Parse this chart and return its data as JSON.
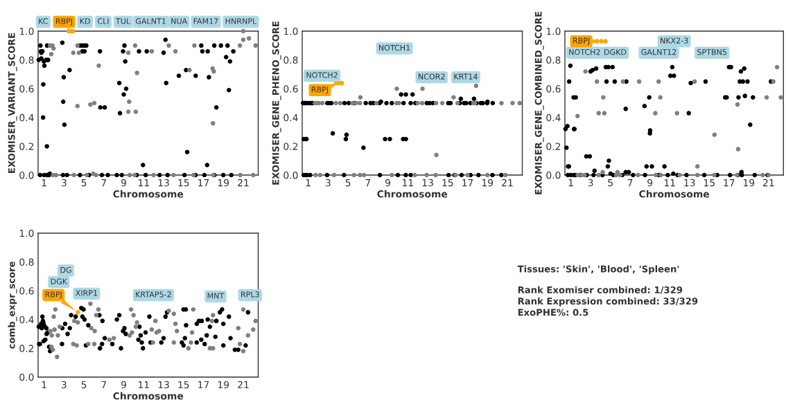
{
  "chart_data": [
    {
      "type": "scatter",
      "xlabel": "Chromosome",
      "ylabel": "EXOMISER_VARIANT_SCORE",
      "xlim": [
        0.4,
        22.5
      ],
      "ylim": [
        0,
        1
      ],
      "marker": "circle",
      "grid": false,
      "xticks": [
        1,
        3,
        5,
        7,
        9,
        11,
        13,
        15,
        17,
        19,
        21
      ],
      "yticks": [
        {
          "value": 0,
          "label": "0.0"
        },
        {
          "value": 0.2,
          "label": "0.2"
        },
        {
          "value": 0.4,
          "label": "0.4"
        },
        {
          "value": 0.6,
          "label": "0.6"
        },
        {
          "value": 0.8,
          "label": "0.8"
        },
        {
          "value": 1.0,
          "label": "1.0"
        }
      ],
      "series": [
        {
          "color": "#000000",
          "x": [
            0.46,
            0.63,
            0.68,
            0.72,
            0.78,
            0.83,
            0.72,
            0.9,
            0.92,
            0.98,
            1.03,
            1.21,
            1.4,
            1.28,
            1.3,
            1.57,
            2.83,
            2.97,
            2.92,
            3.04,
            3.56,
            4.63,
            4.85,
            5.06,
            5.24,
            4.85,
            5.06,
            6.61,
            6.65,
            7.09,
            8.55,
            9.0,
            9.24,
            8.62,
            8.93,
            9.07,
            9.15,
            10.53,
            10.93,
            11.31,
            13.0,
            13.19,
            13.26,
            14.53,
            15.26,
            15.37,
            16.22,
            16.78,
            16.89,
            17.43,
            17.37,
            17.55,
            18.09,
            18.3,
            18.76,
            19.28,
            19.42,
            19.67,
            19.56,
            20.0,
            0.6,
            1.0,
            1.3,
            1.5,
            2.9,
            3.3,
            4.6,
            5.5,
            6.8,
            7.4,
            8.3,
            8.8,
            10.3,
            11.2,
            12.6,
            13.4,
            15.1,
            16.2,
            17.1,
            18.1,
            19.0,
            19.8
          ],
          "values": [
            0.8,
            0.9,
            0.86,
            0.85,
            0.86,
            0.86,
            0.81,
            0.4,
            0.63,
            0.79,
            0.76,
            0.8,
            0.8,
            0.2,
            0.9,
            0.01,
            0.92,
            0.68,
            0.51,
            0.35,
            0.73,
            0.9,
            0.9,
            0.9,
            0.9,
            0.86,
            0.86,
            0.86,
            0.47,
            0.47,
            0.64,
            0.56,
            0.6,
            0.43,
            0.86,
            0.9,
            0.79,
            0.86,
            0.07,
            0.86,
            0.85,
            0.94,
            0.64,
            0.69,
            0.73,
            0.16,
            0.69,
            0.9,
            0.86,
            0.86,
            0.07,
            0.68,
            0.9,
            0.47,
            0.9,
            0.82,
            0.9,
            0.79,
            0.59,
            0.86,
            0,
            0,
            0,
            0,
            0,
            0,
            0,
            0,
            0,
            0,
            0,
            0,
            0,
            0,
            0,
            0,
            0,
            0,
            0,
            0,
            0,
            0
          ]
        },
        {
          "color": "#808080",
          "x": [
            1.6,
            1.83,
            1.95,
            1.72,
            3.93,
            4.35,
            4.5,
            4.35,
            5.65,
            6.04,
            6.49,
            9.46,
            9.54,
            9.46,
            10.14,
            10.21,
            10.33,
            11.81,
            13.52,
            14.19,
            15.6,
            16.09,
            17.92,
            18.04,
            17.96,
            20.66,
            21.0,
            21.57,
            22.24,
            21.0,
            5.93,
            1.9,
            2.2,
            4.0,
            5.3,
            6.2,
            9.6,
            10.1,
            12.0,
            14.0,
            16.0,
            18.0,
            20.7,
            22.0
          ],
          "values": [
            0.9,
            0.9,
            0.88,
            0.84,
            0.85,
            0.9,
            0.85,
            0.48,
            0.49,
            0.5,
            0.76,
            0.85,
            0.51,
            0.44,
            0.9,
            0.44,
            0.71,
            0.86,
            0.9,
            0.86,
            0.73,
            0.9,
            0.74,
            0.72,
            0.36,
            0.9,
            0.94,
            0.95,
            0.9,
            1.0,
            0.01,
            0,
            0,
            0,
            0,
            0,
            0,
            0,
            0,
            0,
            0,
            0,
            0,
            0
          ]
        },
        {
          "name": "RBPJ",
          "color": "#ffa500",
          "x": [
            3.47,
            3.67,
            3.89
          ],
          "values": [
            1.0,
            1.0,
            1.0
          ]
        }
      ],
      "annotations": [
        "KC",
        "KD",
        "CLI",
        "TUL",
        "GALNT1",
        "NUA",
        "FAM17",
        "HNRNPL"
      ]
    },
    {
      "type": "scatter",
      "xlabel": "Chromosome",
      "ylabel": "EXOMISER_GENE_PHENO_SCORE",
      "xlim": [
        0.4,
        22.5
      ],
      "ylim": [
        0,
        1
      ],
      "marker": "circle",
      "grid": false,
      "xticks": [
        1,
        3,
        5,
        7,
        9,
        11,
        13,
        15,
        17,
        19,
        21
      ],
      "yticks": [
        {
          "value": 0,
          "label": "0.0"
        },
        {
          "value": 0.2,
          "label": "0.2"
        },
        {
          "value": 0.4,
          "label": "0.4"
        },
        {
          "value": 0.6,
          "label": "0.6"
        },
        {
          "value": 0.8,
          "label": "0.8"
        },
        {
          "value": 1.0,
          "label": "1.0"
        }
      ],
      "series": [
        {
          "color": "#000000",
          "x": [
            0.48,
            0.62,
            0.71,
            0.9,
            1.1,
            1.29,
            1.38,
            1.48,
            2.92,
            3.11,
            3.33,
            4.65,
            5.07,
            5.63,
            6.78,
            7.26,
            7.56,
            8.17,
            8.86,
            9.39,
            10.58,
            11.29,
            11.76,
            12.91,
            13.19,
            13.52,
            15.07,
            15.3,
            16.22,
            16.65,
            16.87,
            17.29,
            17.9,
            18.33,
            18.54,
            18.98,
            19.53,
            0.56,
            0.78,
            0.83,
            3.47,
            4.85,
            4.78,
            6.55,
            8.72,
            9.2,
            10.53,
            10.81,
            10.33,
            10.81,
            11.48,
            8.31,
            16.33,
            17.65,
            19.0,
            0.55,
            0.75,
            0.9,
            1.2,
            2.9,
            4.6,
            8.2,
            10.0,
            10.8,
            11.3,
            15.1,
            15.7,
            16.4,
            17.3,
            18.1,
            19.5,
            20.4
          ],
          "values": [
            0.5,
            0.5,
            0.5,
            0.5,
            0.5,
            0.5,
            0.5,
            0.5,
            0.5,
            0.5,
            0.5,
            0.5,
            0.5,
            0.5,
            0.5,
            0.5,
            0.5,
            0.5,
            0.5,
            0.5,
            0.5,
            0.5,
            0.5,
            0.5,
            0.5,
            0.5,
            0.5,
            0.5,
            0.5,
            0.5,
            0.5,
            0.5,
            0.5,
            0.5,
            0.5,
            0.5,
            0.5,
            0.25,
            0.25,
            0.25,
            0.29,
            0.28,
            0.25,
            0.19,
            0.25,
            0.25,
            0.25,
            0.25,
            0.56,
            0.56,
            0.56,
            0.51,
            0.53,
            0.53,
            0.51,
            0,
            0,
            0,
            0,
            0,
            0,
            0,
            0,
            0,
            0,
            0,
            0,
            0,
            0,
            0,
            0,
            0
          ]
        },
        {
          "color": "#808080",
          "x": [
            1.67,
            1.86,
            2.08,
            2.42,
            3.78,
            4.22,
            5.44,
            5.81,
            6.2,
            7.85,
            9.88,
            10.12,
            12.0,
            12.45,
            13.84,
            14.47,
            16.0,
            17.6,
            17.75,
            20.41,
            21.52,
            22.24,
            6.24,
            15.6,
            17.86,
            13.87,
            12.48,
            9.9,
            1.75,
            2.2,
            3.6,
            5.6,
            6.2,
            6.6,
            9.4,
            11.7,
            12.9,
            13.8,
            15.8,
            17.0,
            19.0,
            20.8
          ],
          "values": [
            0.5,
            0.5,
            0.5,
            0.5,
            0.5,
            0.5,
            0.5,
            0.5,
            0.5,
            0.5,
            0.5,
            0.5,
            0.5,
            0.5,
            0.5,
            0.5,
            0.5,
            0.5,
            0.5,
            0.5,
            0.5,
            0.5,
            0.54,
            0.54,
            0.62,
            0.14,
            0.6,
            0.6,
            0,
            0,
            0,
            0,
            0,
            0,
            0,
            0,
            0,
            0,
            0,
            0,
            0,
            0
          ]
        },
        {
          "name": "RBPJ",
          "color": "#ffa500",
          "x": [
            3.82,
            4.11,
            4.39
          ],
          "values": [
            0.64,
            0.64,
            0.64
          ]
        }
      ],
      "annotations": [
        "NOTCH1",
        "NOTCH2",
        "NCOR2",
        "KRT14"
      ]
    },
    {
      "type": "scatter",
      "xlabel": "Chromosome",
      "ylabel": "EXOMISER_GENE_COMBINED_SCORE",
      "xlim": [
        0.4,
        22.5
      ],
      "ylim": [
        0,
        1
      ],
      "marker": "circle",
      "grid": false,
      "xticks": [
        1,
        3,
        5,
        7,
        9,
        11,
        13,
        15,
        17,
        19,
        21
      ],
      "yticks": [
        {
          "value": 0,
          "label": "0.0"
        },
        {
          "value": 0.2,
          "label": "0.2"
        },
        {
          "value": 0.4,
          "label": "0.4"
        },
        {
          "value": 0.6,
          "label": "0.6"
        },
        {
          "value": 0.8,
          "label": "0.8"
        },
        {
          "value": 1.0,
          "label": "1.0"
        }
      ],
      "series": [
        {
          "color": "#000000",
          "x": [
            0.46,
            0.56,
            0.66,
            0.72,
            0.81,
            0.83,
            0.95,
            1.28,
            1.5,
            1.32,
            1.37,
            2.57,
            2.92,
            3.0,
            3.2,
            3.56,
            3.4,
            4.54,
            4.8,
            5.22,
            4.61,
            4.74,
            4.85,
            5.02,
            5.44,
            6.55,
            6.61,
            6.55,
            6.86,
            8.45,
            8.93,
            9.02,
            9.0,
            8.66,
            9.2,
            10.47,
            11.07,
            11.43,
            11.26,
            11.36,
            12.93,
            13.13,
            14.63,
            17.0,
            17.2,
            16.61,
            16.76,
            17.96,
            18.2,
            18.54,
            18.09,
            18.41,
            18.87,
            18.61,
            19.42,
            19.14,
            18.26,
            21.24,
            0.7,
            1.0,
            1.3,
            1.5,
            2.0,
            2.6,
            3.3,
            4.2,
            5.3,
            6.2,
            7.3,
            8.5,
            9.9,
            10.8,
            11.8,
            12.7,
            14.5,
            15.8,
            17.1,
            17.9,
            18.3,
            19.6,
            20.9
          ],
          "values": [
            0.32,
            0.19,
            0.34,
            0.06,
            0.06,
            0.65,
            0.76,
            0.54,
            0.54,
            0.32,
            0.32,
            0.13,
            0.13,
            0.72,
            0.73,
            0.74,
            0.03,
            0.75,
            0.75,
            0.75,
            0.65,
            0.06,
            0.1,
            0.01,
            0.65,
            0.46,
            0.65,
            0.02,
            0.02,
            0.48,
            0.54,
            0.31,
            0.29,
            0.06,
            0.06,
            0.06,
            0.69,
            0.69,
            0.75,
            0.01,
            0.43,
            0.64,
            0.65,
            0.75,
            0.75,
            0.54,
            0.54,
            0.54,
            0.72,
            0.74,
            0.65,
            0.65,
            0.65,
            0.55,
            0.54,
            0.35,
            0.02,
            0.65,
            0,
            0,
            0,
            0,
            0,
            0,
            0,
            0,
            0,
            0,
            0,
            0,
            0,
            0,
            0,
            0,
            0,
            0,
            0,
            0,
            0,
            0,
            0
          ]
        },
        {
          "color": "#808080",
          "x": [
            2.48,
            1.68,
            3.64,
            3.82,
            4.28,
            4.39,
            4.22,
            5.72,
            6.27,
            7.91,
            9.54,
            9.88,
            10.05,
            11.74,
            13.52,
            13.81,
            15.53,
            17.86,
            17.92,
            20.81,
            21.48,
            21.86,
            22.24,
            1.7,
            2.1,
            2.4,
            3.8,
            5.6,
            6.0,
            7.8,
            9.6,
            10.1,
            12.0,
            13.8,
            15.5,
            17.8,
            20.4,
            21.0
          ],
          "values": [
            0.72,
            0.41,
            0.65,
            0.43,
            0.54,
            0.43,
            0.02,
            0.02,
            0.65,
            0.65,
            0.43,
            0.65,
            0.54,
            0.43,
            0.65,
            0.06,
            0.28,
            0.49,
            0.18,
            0.54,
            0.65,
            0.75,
            0.54,
            0,
            0,
            0,
            0,
            0,
            0,
            0,
            0,
            0,
            0,
            0,
            0,
            0,
            0,
            0
          ]
        },
        {
          "name": "RBPJ",
          "color": "#ffa500",
          "x": [
            3.64,
            4.07,
            4.5
          ],
          "values": [
            0.93,
            0.93,
            0.93
          ]
        }
      ],
      "annotations": [
        "NOTCH2",
        "DGKD",
        "NKX2-3",
        "GALNT12",
        "SPTBN5"
      ]
    },
    {
      "type": "scatter",
      "xlabel": "Chromosome",
      "ylabel": "comb_expr_score",
      "xlim": [
        0.4,
        22.5
      ],
      "ylim": [
        0,
        1
      ],
      "marker": "circle",
      "grid": false,
      "xticks": [
        1,
        3,
        5,
        7,
        9,
        11,
        13,
        15,
        17,
        19,
        21
      ],
      "yticks": [
        {
          "value": 0,
          "label": "0.0"
        },
        {
          "value": 0.2,
          "label": "0.2"
        },
        {
          "value": 0.4,
          "label": "0.4"
        },
        {
          "value": 0.6,
          "label": "0.6"
        },
        {
          "value": 0.8,
          "label": "0.8"
        },
        {
          "value": 1.0,
          "label": "1.0"
        }
      ],
      "series": [
        {
          "color": "#000000",
          "x": [
            0.46,
            0.5,
            0.58,
            0.7,
            0.76,
            0.83,
            0.88,
            0.92,
            1.0,
            1.08,
            1.23,
            1.25,
            1.37,
            0.95,
            1.12,
            1.5,
            1.6,
            2.83,
            3.11,
            3.36,
            3.58,
            2.8,
            3.71,
            4.17,
            4.74,
            4.96,
            4.85,
            5.06,
            5.44,
            5.2,
            6.61,
            6.82,
            6.55,
            6.86,
            7.09,
            7.85,
            8.31,
            8.55,
            8.72,
            8.93,
            9.07,
            9.2,
            10.58,
            10.7,
            10.47,
            10.81,
            10.93,
            11.19,
            11.57,
            11.69,
            12.77,
            13.0,
            13.19,
            13.35,
            14.84,
            15.0,
            15.14,
            15.26,
            15.0,
            15.23,
            16.33,
            16.54,
            16.83,
            16.33,
            16.78,
            17.12,
            17.33,
            17.65,
            17.43,
            18.2,
            18.3,
            18.65,
            18.87,
            19.0,
            19.0,
            19.56,
            19.72,
            20.16,
            20.5,
            21.24,
            21.48
          ],
          "values": [
            0.35,
            0.23,
            0.23,
            0.37,
            0.34,
            0.42,
            0.39,
            0.38,
            0.36,
            0.35,
            0.34,
            0.3,
            0.31,
            0.25,
            0.26,
            0.21,
            0.18,
            0.34,
            0.37,
            0.3,
            0.34,
            0.23,
            0.43,
            0.42,
            0.48,
            0.47,
            0.42,
            0.4,
            0.36,
            0.22,
            0.2,
            0.23,
            0.43,
            0.39,
            0.27,
            0.23,
            0.4,
            0.43,
            0.2,
            0.32,
            0.34,
            0.3,
            0.35,
            0.29,
            0.26,
            0.24,
            0.2,
            0.31,
            0.42,
            0.24,
            0.24,
            0.27,
            0.42,
            0.45,
            0.24,
            0.22,
            0.27,
            0.36,
            0.47,
            0.47,
            0.37,
            0.39,
            0.39,
            0.24,
            0.26,
            0.23,
            0.29,
            0.35,
            0.4,
            0.28,
            0.39,
            0.45,
            0.47,
            0.37,
            0.22,
            0.42,
            0.27,
            0.19,
            0.19,
            0.22,
            0.45
          ]
        },
        {
          "color": "#808080",
          "x": [
            1.63,
            1.77,
            1.88,
            1.74,
            1.97,
            2.05,
            2.13,
            2.3,
            2.38,
            2.57,
            3.93,
            4.28,
            4.04,
            4.39,
            5.65,
            5.44,
            6.04,
            5.74,
            6.08,
            6.24,
            6.45,
            7.56,
            8.0,
            9.59,
            9.83,
            10.21,
            10.33,
            9.98,
            9.73,
            11.81,
            12.3,
            12.55,
            12.18,
            11.93,
            13.52,
            14.03,
            14.19,
            14.34,
            14.03,
            15.49,
            15.74,
            15.86,
            15.98,
            17.86,
            17.96,
            17.65,
            17.96,
            20.5,
            20.66,
            21.0,
            21.0,
            21.48,
            22.0,
            22.24
          ],
          "values": [
            0.32,
            0.29,
            0.19,
            0.21,
            0.42,
            0.33,
            0.47,
            0.14,
            0.29,
            0.35,
            0.23,
            0.22,
            0.39,
            0.38,
            0.51,
            0.23,
            0.23,
            0.34,
            0.32,
            0.43,
            0.47,
            0.26,
            0.27,
            0.29,
            0.31,
            0.35,
            0.38,
            0.43,
            0.47,
            0.33,
            0.31,
            0.32,
            0.39,
            0.24,
            0.46,
            0.44,
            0.37,
            0.32,
            0.24,
            0.2,
            0.24,
            0.31,
            0.47,
            0.39,
            0.43,
            0.2,
            0.2,
            0.34,
            0.23,
            0.18,
            0.47,
            0.29,
            0.33,
            0.39
          ]
        },
        {
          "name": "RBPJ",
          "color": "#ffa500",
          "x": [
            4.39
          ],
          "values": [
            0.45
          ]
        }
      ],
      "annotations": [
        "DG",
        "DGK",
        "XIRP1",
        "KRTAP5-2",
        "MNT",
        "RPL3"
      ]
    },
    {
      "type": "other",
      "annotations": [
        "Tissues: 'Skin', 'Blood', 'Spleen'",
        "Rank Exomiser combined: 1/329",
        "Rank Expression combined: 33/329",
        "ExoPHE%: 0.5"
      ]
    }
  ]
}
